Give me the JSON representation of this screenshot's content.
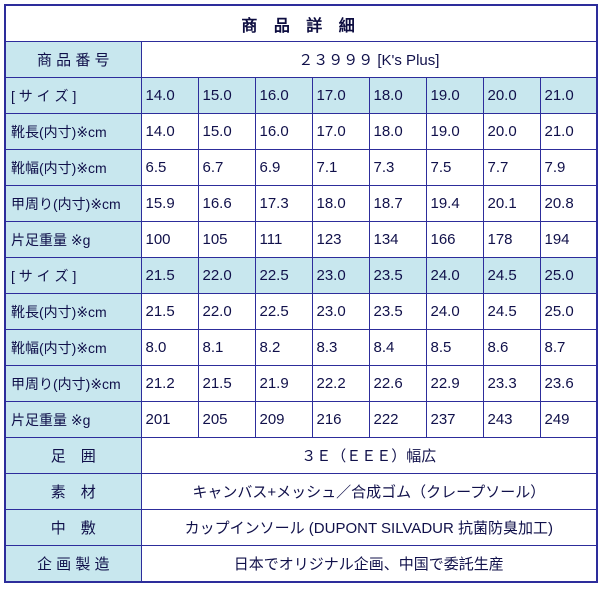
{
  "colors": {
    "border": "#2d2d9b",
    "label_background": "#c8e7ee",
    "text": "#10104a"
  },
  "table": {
    "rows": [
      {
        "type": "title",
        "label": "商 品 詳 細"
      },
      {
        "type": "pair",
        "label": "商 品 番 号",
        "value": "２３９９９ [K's Plus]"
      },
      {
        "type": "data",
        "highlight": true,
        "label": "[ サ イ ズ ]",
        "values": [
          "14.0",
          "15.0",
          "16.0",
          "17.0",
          "18.0",
          "19.0",
          "20.0",
          "21.0"
        ]
      },
      {
        "type": "data",
        "highlight": false,
        "label": "靴長(内寸)※cm",
        "values": [
          "14.0",
          "15.0",
          "16.0",
          "17.0",
          "18.0",
          "19.0",
          "20.0",
          "21.0"
        ]
      },
      {
        "type": "data",
        "highlight": false,
        "label": "靴幅(内寸)※cm",
        "values": [
          "6.5",
          "6.7",
          "6.9",
          "7.1",
          "7.3",
          "7.5",
          "7.7",
          "7.9"
        ]
      },
      {
        "type": "data",
        "highlight": false,
        "label": "甲周り(内寸)※cm",
        "values": [
          "15.9",
          "16.6",
          "17.3",
          "18.0",
          "18.7",
          "19.4",
          "20.1",
          "20.8"
        ]
      },
      {
        "type": "data",
        "highlight": false,
        "label": "片足重量 ※g",
        "values": [
          "100",
          "105",
          "111",
          "123",
          "134",
          "166",
          "178",
          "194"
        ]
      },
      {
        "type": "data",
        "highlight": true,
        "label": "[ サ イ ズ ]",
        "values": [
          "21.5",
          "22.0",
          "22.5",
          "23.0",
          "23.5",
          "24.0",
          "24.5",
          "25.0"
        ]
      },
      {
        "type": "data",
        "highlight": false,
        "label": "靴長(内寸)※cm",
        "values": [
          "21.5",
          "22.0",
          "22.5",
          "23.0",
          "23.5",
          "24.0",
          "24.5",
          "25.0"
        ]
      },
      {
        "type": "data",
        "highlight": false,
        "label": "靴幅(内寸)※cm",
        "values": [
          "8.0",
          "8.1",
          "8.2",
          "8.3",
          "8.4",
          "8.5",
          "8.6",
          "8.7"
        ]
      },
      {
        "type": "data",
        "highlight": false,
        "label": "甲周り(内寸)※cm",
        "values": [
          "21.2",
          "21.5",
          "21.9",
          "22.2",
          "22.6",
          "22.9",
          "23.3",
          "23.6"
        ]
      },
      {
        "type": "data",
        "highlight": false,
        "label": "片足重量 ※g",
        "values": [
          "201",
          "205",
          "209",
          "216",
          "222",
          "237",
          "243",
          "249"
        ]
      },
      {
        "type": "pair",
        "label": "足　囲",
        "value": "３Ｅ（ＥＥＥ）幅広"
      },
      {
        "type": "pair",
        "label": "素　材",
        "value": "キャンバス+メッシュ／合成ゴム（クレープソール）"
      },
      {
        "type": "pair",
        "label": "中　敷",
        "value": "カップインソール (DUPONT SILVADUR 抗菌防臭加工)"
      },
      {
        "type": "pair",
        "label": "企 画 製 造",
        "value": "日本でオリジナル企画、中国で委託生産"
      }
    ]
  }
}
